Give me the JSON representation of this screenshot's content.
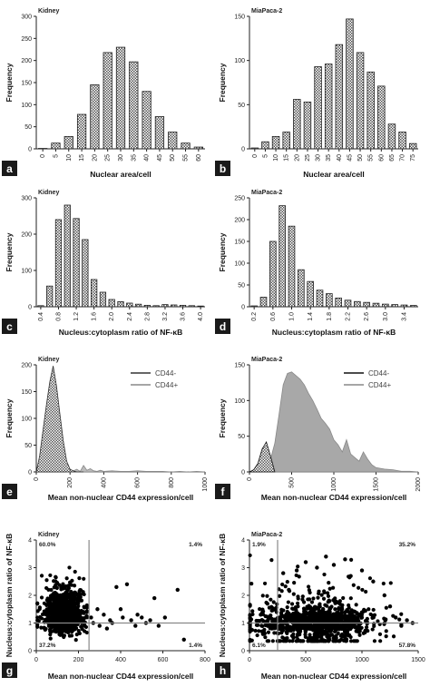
{
  "chart_data": [
    {
      "id": "a",
      "letter": "a",
      "type": "bar",
      "title": "Kidney",
      "xlabel": "Nuclear area/cell",
      "ylabel": "Frequency",
      "categories": [
        "0",
        "5",
        "10",
        "15",
        "20",
        "25",
        "30",
        "35",
        "40",
        "45",
        "50",
        "55",
        "60"
      ],
      "values": [
        1,
        13,
        28,
        78,
        145,
        218,
        230,
        197,
        130,
        73,
        38,
        13,
        4
      ],
      "ylim": [
        0,
        300
      ],
      "yticks": [
        0,
        50,
        100,
        150,
        200,
        250,
        300
      ],
      "grid": false
    },
    {
      "id": "b",
      "letter": "b",
      "type": "bar",
      "title": "MiaPaca-2",
      "xlabel": "Nuclear area/cell",
      "ylabel": "Frequency",
      "categories": [
        "0",
        "5",
        "10",
        "15",
        "20",
        "25",
        "30",
        "35",
        "40",
        "45",
        "50",
        "55",
        "60",
        "65",
        "70",
        "75"
      ],
      "values": [
        1,
        8,
        14,
        19,
        56,
        53,
        93,
        96,
        118,
        147,
        109,
        87,
        71,
        28,
        19,
        6
      ],
      "ylim": [
        0,
        150
      ],
      "yticks": [
        0,
        50,
        100,
        150
      ],
      "grid": false
    },
    {
      "id": "c",
      "letter": "c",
      "type": "bar",
      "title": "Kidney",
      "xlabel": "Nucleus:cytoplasm ratio of NF-κB",
      "ylabel": "Frequency",
      "categories": [
        "0.4",
        "0.6",
        "0.8",
        "1.0",
        "1.2",
        "1.4",
        "1.6",
        "1.8",
        "2.0",
        "2.2",
        "2.4",
        "2.6",
        "2.8",
        "3.0",
        "3.2",
        "3.4",
        "3.6",
        "3.8",
        "4.0"
      ],
      "values": [
        3,
        57,
        240,
        280,
        243,
        185,
        75,
        40,
        20,
        14,
        10,
        7,
        4,
        3,
        6,
        5,
        4,
        3,
        2
      ],
      "ylim": [
        0,
        300
      ],
      "yticks": [
        0,
        100,
        200,
        300
      ],
      "xticks": [
        "0.4",
        "0.8",
        "1.2",
        "1.6",
        "2.0",
        "2.4",
        "2.8",
        "3.2",
        "3.6",
        "4.0"
      ],
      "grid": false
    },
    {
      "id": "d",
      "letter": "d",
      "type": "bar",
      "title": "MiaPaca-2",
      "xlabel": "Nucleus:cytoplasm ratio of NF-κB",
      "ylabel": "Frequency",
      "categories": [
        "0.2",
        "0.4",
        "0.6",
        "0.8",
        "1.0",
        "1.2",
        "1.4",
        "1.6",
        "1.8",
        "2.0",
        "2.2",
        "2.4",
        "2.6",
        "2.8",
        "3.0",
        "3.2",
        "3.4",
        "3.6"
      ],
      "values": [
        2,
        22,
        150,
        232,
        185,
        85,
        58,
        38,
        30,
        20,
        15,
        12,
        10,
        8,
        6,
        5,
        4,
        3
      ],
      "ylim": [
        0,
        250
      ],
      "yticks": [
        0,
        50,
        100,
        150,
        200,
        250
      ],
      "xticks": [
        "0.2",
        "0.6",
        "1.0",
        "1.4",
        "1.8",
        "2.2",
        "2.6",
        "3.0",
        "3.4"
      ],
      "grid": false
    },
    {
      "id": "e",
      "letter": "e",
      "type": "area",
      "title": "Kidney",
      "xlabel": "Mean non-nuclear CD44 expression/cell",
      "ylabel": "Frequency",
      "xlim": [
        0,
        1000
      ],
      "ylim": [
        0,
        200
      ],
      "xticks": [
        0,
        200,
        400,
        600,
        800,
        1000
      ],
      "yticks": [
        0,
        50,
        100,
        150,
        200
      ],
      "legend": "top-right",
      "series": [
        {
          "name": "CD44-",
          "color": "#333333",
          "fill": "none",
          "x": [
            0,
            20,
            40,
            60,
            80,
            100,
            120,
            140,
            160,
            180,
            200,
            220,
            240,
            260,
            280
          ],
          "y": [
            0,
            30,
            78,
            125,
            168,
            198,
            160,
            108,
            58,
            20,
            5,
            2,
            0,
            0,
            0
          ]
        },
        {
          "name": "CD44+",
          "color": "#888888",
          "fill": "#aaaaaa",
          "x": [
            180,
            200,
            220,
            240,
            260,
            280,
            300,
            320,
            340,
            360,
            380,
            400,
            450,
            500,
            550,
            600,
            650,
            700,
            750,
            800,
            850,
            900,
            950,
            1000
          ],
          "y": [
            0,
            4,
            2,
            5,
            1,
            12,
            3,
            6,
            2,
            1,
            3,
            1,
            2,
            1,
            1,
            2,
            1,
            1,
            1,
            0,
            1,
            0,
            1,
            0
          ]
        }
      ]
    },
    {
      "id": "f",
      "letter": "f",
      "type": "area",
      "title": "MiaPaca-2",
      "xlabel": "Mean non-nuclear CD44 expression/cell",
      "ylabel": "Frequency",
      "xlim": [
        0,
        2000
      ],
      "ylim": [
        0,
        150
      ],
      "xticks": [
        0,
        500,
        1000,
        1500,
        2000
      ],
      "yticks": [
        0,
        50,
        100,
        150
      ],
      "legend": "top-right",
      "series": [
        {
          "name": "CD44-",
          "color": "#111111",
          "fill": "none",
          "x": [
            0,
            50,
            100,
            150,
            200,
            250,
            300
          ],
          "y": [
            0,
            3,
            12,
            32,
            42,
            22,
            0
          ]
        },
        {
          "name": "CD44+",
          "color": "#888888",
          "fill": "#999999",
          "x": [
            150,
            200,
            250,
            300,
            350,
            400,
            450,
            500,
            550,
            600,
            650,
            700,
            750,
            800,
            850,
            900,
            950,
            1000,
            1050,
            1100,
            1150,
            1200,
            1250,
            1300,
            1350,
            1400,
            1450,
            1500,
            1600,
            1700,
            1800,
            1900,
            2000
          ],
          "y": [
            0,
            10,
            18,
            40,
            80,
            122,
            138,
            140,
            135,
            130,
            122,
            110,
            100,
            88,
            75,
            68,
            60,
            45,
            38,
            28,
            45,
            25,
            20,
            15,
            28,
            18,
            10,
            6,
            4,
            3,
            1,
            1,
            0
          ]
        }
      ]
    },
    {
      "id": "g",
      "letter": "g",
      "type": "scatter",
      "title": "Kidney",
      "xlabel": "Mean non-nuclear CD44 expression/cell",
      "ylabel": "Nucleus:cytoplasm ratio of NF-κB",
      "xlim": [
        0,
        800
      ],
      "ylim": [
        0,
        4
      ],
      "xticks": [
        0,
        200,
        400,
        600,
        800
      ],
      "yticks": [
        0,
        1,
        2,
        3,
        4
      ],
      "thresholds": {
        "x": 250,
        "y": 1.0
      },
      "quadrant_labels": {
        "top_left": "60.0%",
        "top_right": "1.4%",
        "bottom_left": "37.2%",
        "bottom_right": "1.4%"
      },
      "cluster": {
        "x_center": 130,
        "x_spread": 45,
        "y_center": 1.2,
        "y_spread": 0.55,
        "x_max": 240
      },
      "outliers": [
        [
          260,
          1.2
        ],
        [
          270,
          1.0
        ],
        [
          300,
          0.9
        ],
        [
          320,
          1.3
        ],
        [
          350,
          1.1
        ],
        [
          380,
          2.3
        ],
        [
          400,
          1.5
        ],
        [
          410,
          1.2
        ],
        [
          430,
          2.4
        ],
        [
          450,
          1.1
        ],
        [
          470,
          0.9
        ],
        [
          500,
          1.2
        ],
        [
          520,
          1.0
        ],
        [
          540,
          1.1
        ],
        [
          560,
          1.9
        ],
        [
          580,
          0.9
        ],
        [
          610,
          1.2
        ],
        [
          670,
          2.2
        ],
        [
          700,
          0.4
        ],
        [
          290,
          1.5
        ],
        [
          335,
          0.8
        ],
        [
          360,
          1.0
        ],
        [
          480,
          1.3
        ]
      ]
    },
    {
      "id": "h",
      "letter": "h",
      "type": "scatter",
      "title": "MiaPaca-2",
      "xlabel": "Mean non-nuclear CD44 expression/cell",
      "ylabel": "Nucleus:cytoplasm ratio of NF-κB",
      "xlim": [
        0,
        1500
      ],
      "ylim": [
        0,
        4
      ],
      "xticks": [
        0,
        500,
        1000,
        1500
      ],
      "yticks": [
        0,
        1,
        2,
        3,
        4
      ],
      "thresholds": {
        "x": 250,
        "y": 1.0
      },
      "quadrant_labels": {
        "top_left": "1.9%",
        "top_right": "35.2%",
        "bottom_left": "6.1%",
        "bottom_right": "57.8%"
      },
      "cluster": {
        "x_center": 600,
        "x_spread": 260,
        "y_center": 1.05,
        "y_spread": 0.35,
        "x_max": 1350
      },
      "outliers": [
        [
          150,
          1.0
        ],
        [
          180,
          1.2
        ],
        [
          200,
          0.9
        ],
        [
          220,
          1.1
        ],
        [
          120,
          0.6
        ],
        [
          100,
          1.3
        ],
        [
          300,
          2.8
        ],
        [
          420,
          2.9
        ],
        [
          600,
          3.0
        ],
        [
          750,
          3.1
        ],
        [
          900,
          2.7
        ],
        [
          1100,
          2.5
        ],
        [
          1250,
          1.6
        ],
        [
          1300,
          1.2
        ],
        [
          1350,
          0.9
        ],
        [
          1400,
          1.1
        ],
        [
          1450,
          1.0
        ],
        [
          850,
          3.3
        ],
        [
          500,
          3.2
        ],
        [
          1000,
          2.9
        ],
        [
          680,
          3.4
        ],
        [
          350,
          2.2
        ],
        [
          1200,
          2.0
        ]
      ]
    }
  ]
}
